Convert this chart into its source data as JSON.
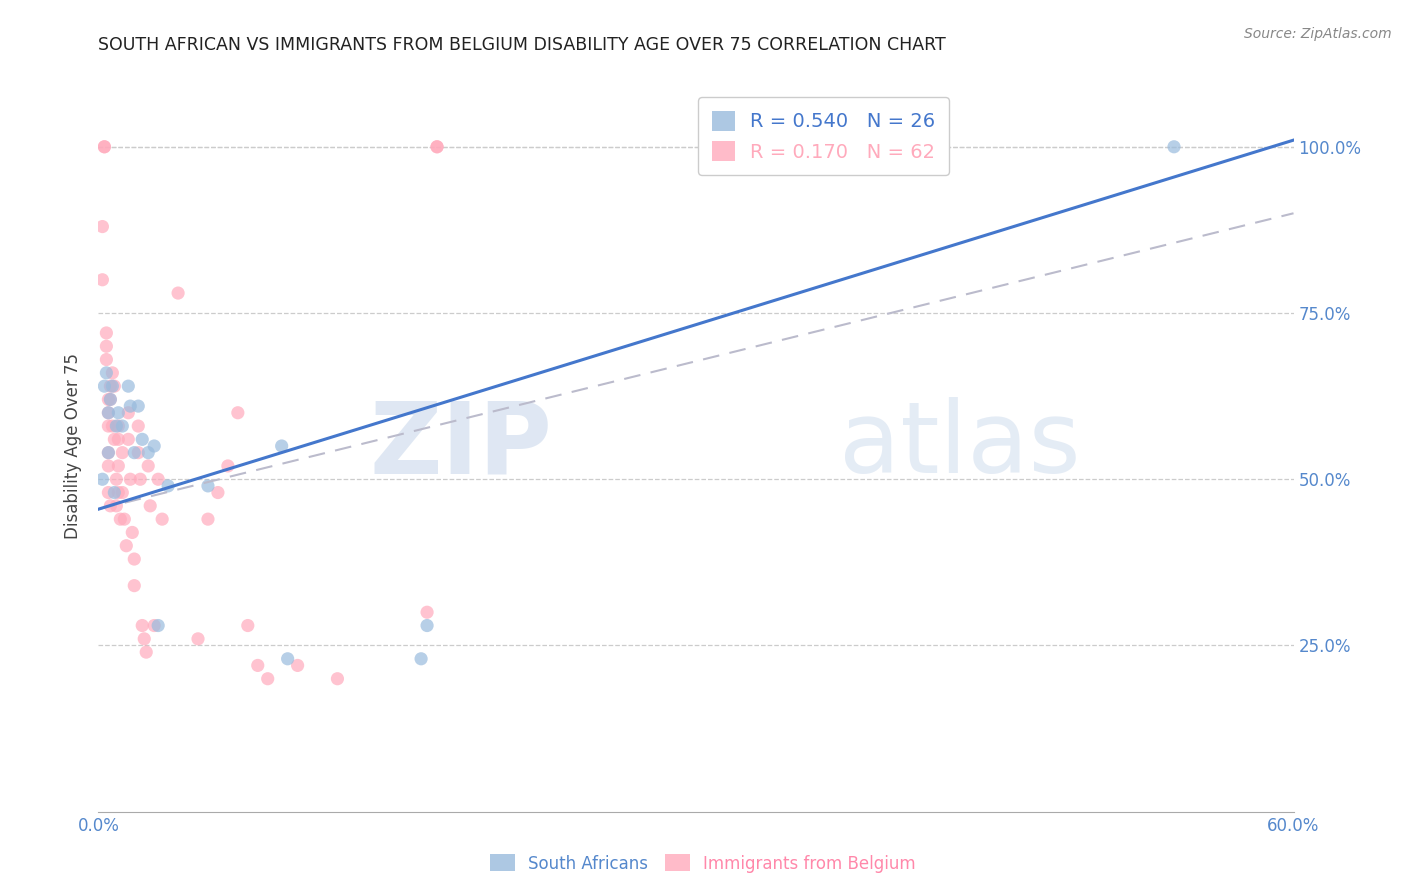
{
  "title": "SOUTH AFRICAN VS IMMIGRANTS FROM BELGIUM DISABILITY AGE OVER 75 CORRELATION CHART",
  "source": "Source: ZipAtlas.com",
  "ylabel": "Disability Age Over 75",
  "watermark_zip": "ZIP",
  "watermark_atlas": "atlas",
  "xmin": 0.0,
  "xmax": 0.6,
  "ymin": 0.0,
  "ymax": 1.1,
  "xtick_labels_edge": [
    "0.0%",
    "60.0%"
  ],
  "xtick_values_edge": [
    0.0,
    0.6
  ],
  "ytick_labels": [
    "25.0%",
    "50.0%",
    "75.0%",
    "100.0%"
  ],
  "ytick_values": [
    0.25,
    0.5,
    0.75,
    1.0
  ],
  "blue_R": 0.54,
  "blue_N": 26,
  "pink_R": 0.17,
  "pink_N": 62,
  "blue_color": "#99BBDD",
  "pink_color": "#FFAABC",
  "blue_line_color": "#4477CC",
  "pink_line_color": "#BBBBCC",
  "legend_label_blue": "South Africans",
  "legend_label_pink": "Immigrants from Belgium",
  "blue_line_x0": 0.0,
  "blue_line_y0": 0.455,
  "blue_line_x1": 0.6,
  "blue_line_y1": 1.01,
  "pink_line_x0": 0.0,
  "pink_line_y0": 0.455,
  "pink_line_x1": 0.6,
  "pink_line_y1": 0.9,
  "blue_scatter_x": [
    0.002,
    0.003,
    0.004,
    0.005,
    0.005,
    0.006,
    0.007,
    0.008,
    0.009,
    0.01,
    0.012,
    0.015,
    0.016,
    0.018,
    0.02,
    0.022,
    0.025,
    0.028,
    0.03,
    0.035,
    0.055,
    0.092,
    0.095,
    0.162,
    0.165,
    0.54
  ],
  "blue_scatter_y": [
    0.5,
    0.64,
    0.66,
    0.54,
    0.6,
    0.62,
    0.64,
    0.48,
    0.58,
    0.6,
    0.58,
    0.64,
    0.61,
    0.54,
    0.61,
    0.56,
    0.54,
    0.55,
    0.28,
    0.49,
    0.49,
    0.55,
    0.23,
    0.23,
    0.28,
    1.0
  ],
  "pink_scatter_x": [
    0.002,
    0.002,
    0.003,
    0.003,
    0.004,
    0.004,
    0.004,
    0.005,
    0.005,
    0.005,
    0.005,
    0.005,
    0.005,
    0.006,
    0.006,
    0.006,
    0.007,
    0.007,
    0.008,
    0.008,
    0.009,
    0.009,
    0.01,
    0.01,
    0.01,
    0.01,
    0.011,
    0.012,
    0.012,
    0.013,
    0.014,
    0.015,
    0.015,
    0.016,
    0.017,
    0.018,
    0.018,
    0.02,
    0.02,
    0.021,
    0.022,
    0.023,
    0.024,
    0.025,
    0.026,
    0.028,
    0.03,
    0.032,
    0.04,
    0.05,
    0.055,
    0.06,
    0.065,
    0.07,
    0.075,
    0.08,
    0.085,
    0.1,
    0.12,
    0.165,
    0.17,
    0.17
  ],
  "pink_scatter_y": [
    0.88,
    0.8,
    1.0,
    1.0,
    0.7,
    0.72,
    0.68,
    0.62,
    0.6,
    0.58,
    0.54,
    0.52,
    0.48,
    0.64,
    0.62,
    0.46,
    0.66,
    0.58,
    0.64,
    0.56,
    0.5,
    0.46,
    0.58,
    0.56,
    0.52,
    0.48,
    0.44,
    0.54,
    0.48,
    0.44,
    0.4,
    0.6,
    0.56,
    0.5,
    0.42,
    0.38,
    0.34,
    0.58,
    0.54,
    0.5,
    0.28,
    0.26,
    0.24,
    0.52,
    0.46,
    0.28,
    0.5,
    0.44,
    0.78,
    0.26,
    0.44,
    0.48,
    0.52,
    0.6,
    0.28,
    0.22,
    0.2,
    0.22,
    0.2,
    0.3,
    1.0,
    1.0
  ]
}
